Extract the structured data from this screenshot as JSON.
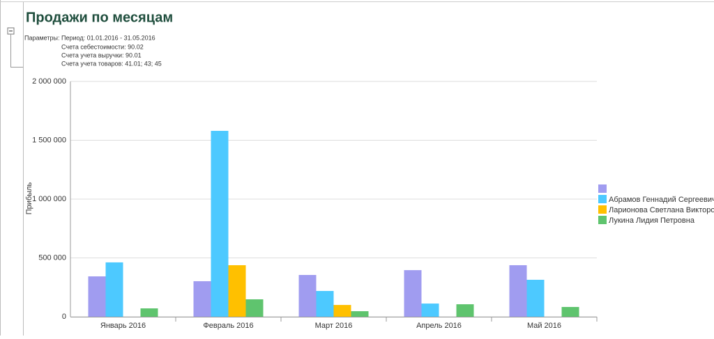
{
  "report": {
    "title": "Продажи по месяцам",
    "parameters_label": "Параметры:",
    "parameters": [
      "Период: 01.01.2016 - 31.05.2016",
      "Счета себестоимости: 90.02",
      "Счета учета выручки: 90.01",
      "Счета учета товаров: 41.01; 43; 45"
    ]
  },
  "chart_data": {
    "type": "bar",
    "y_label": "Прибыль",
    "categories": [
      "Январь 2016",
      "Февраль 2016",
      "Март 2016",
      "Апрель 2016",
      "Май 2016"
    ],
    "series": [
      {
        "name": null,
        "color": "#a09cf0",
        "values": [
          343000,
          302000,
          355000,
          396000,
          438000
        ]
      },
      {
        "name": "Абрамов Геннадий Сергеевич",
        "color": "#4dc9ff",
        "values": [
          462000,
          1580000,
          219000,
          112000,
          314000
        ]
      },
      {
        "name": "Ларионова Светлана Викторовна",
        "color": "#ffc000",
        "values": [
          null,
          438000,
          100000,
          null,
          null
        ]
      },
      {
        "name": "Лукина Лидия Петровна",
        "color": "#5fc46e",
        "values": [
          71000,
          148000,
          47000,
          106000,
          83000
        ]
      }
    ],
    "ylim": [
      0,
      2000000
    ],
    "yticks": [
      0,
      {
        "value": 500000,
        "label": "500 000"
      },
      {
        "value": 1000000,
        "label": "1 000 000"
      },
      {
        "value": 1500000,
        "label": "1 500 000"
      },
      {
        "value": 2000000,
        "label": "2 000 000"
      }
    ],
    "grid": true,
    "legend": "right"
  }
}
